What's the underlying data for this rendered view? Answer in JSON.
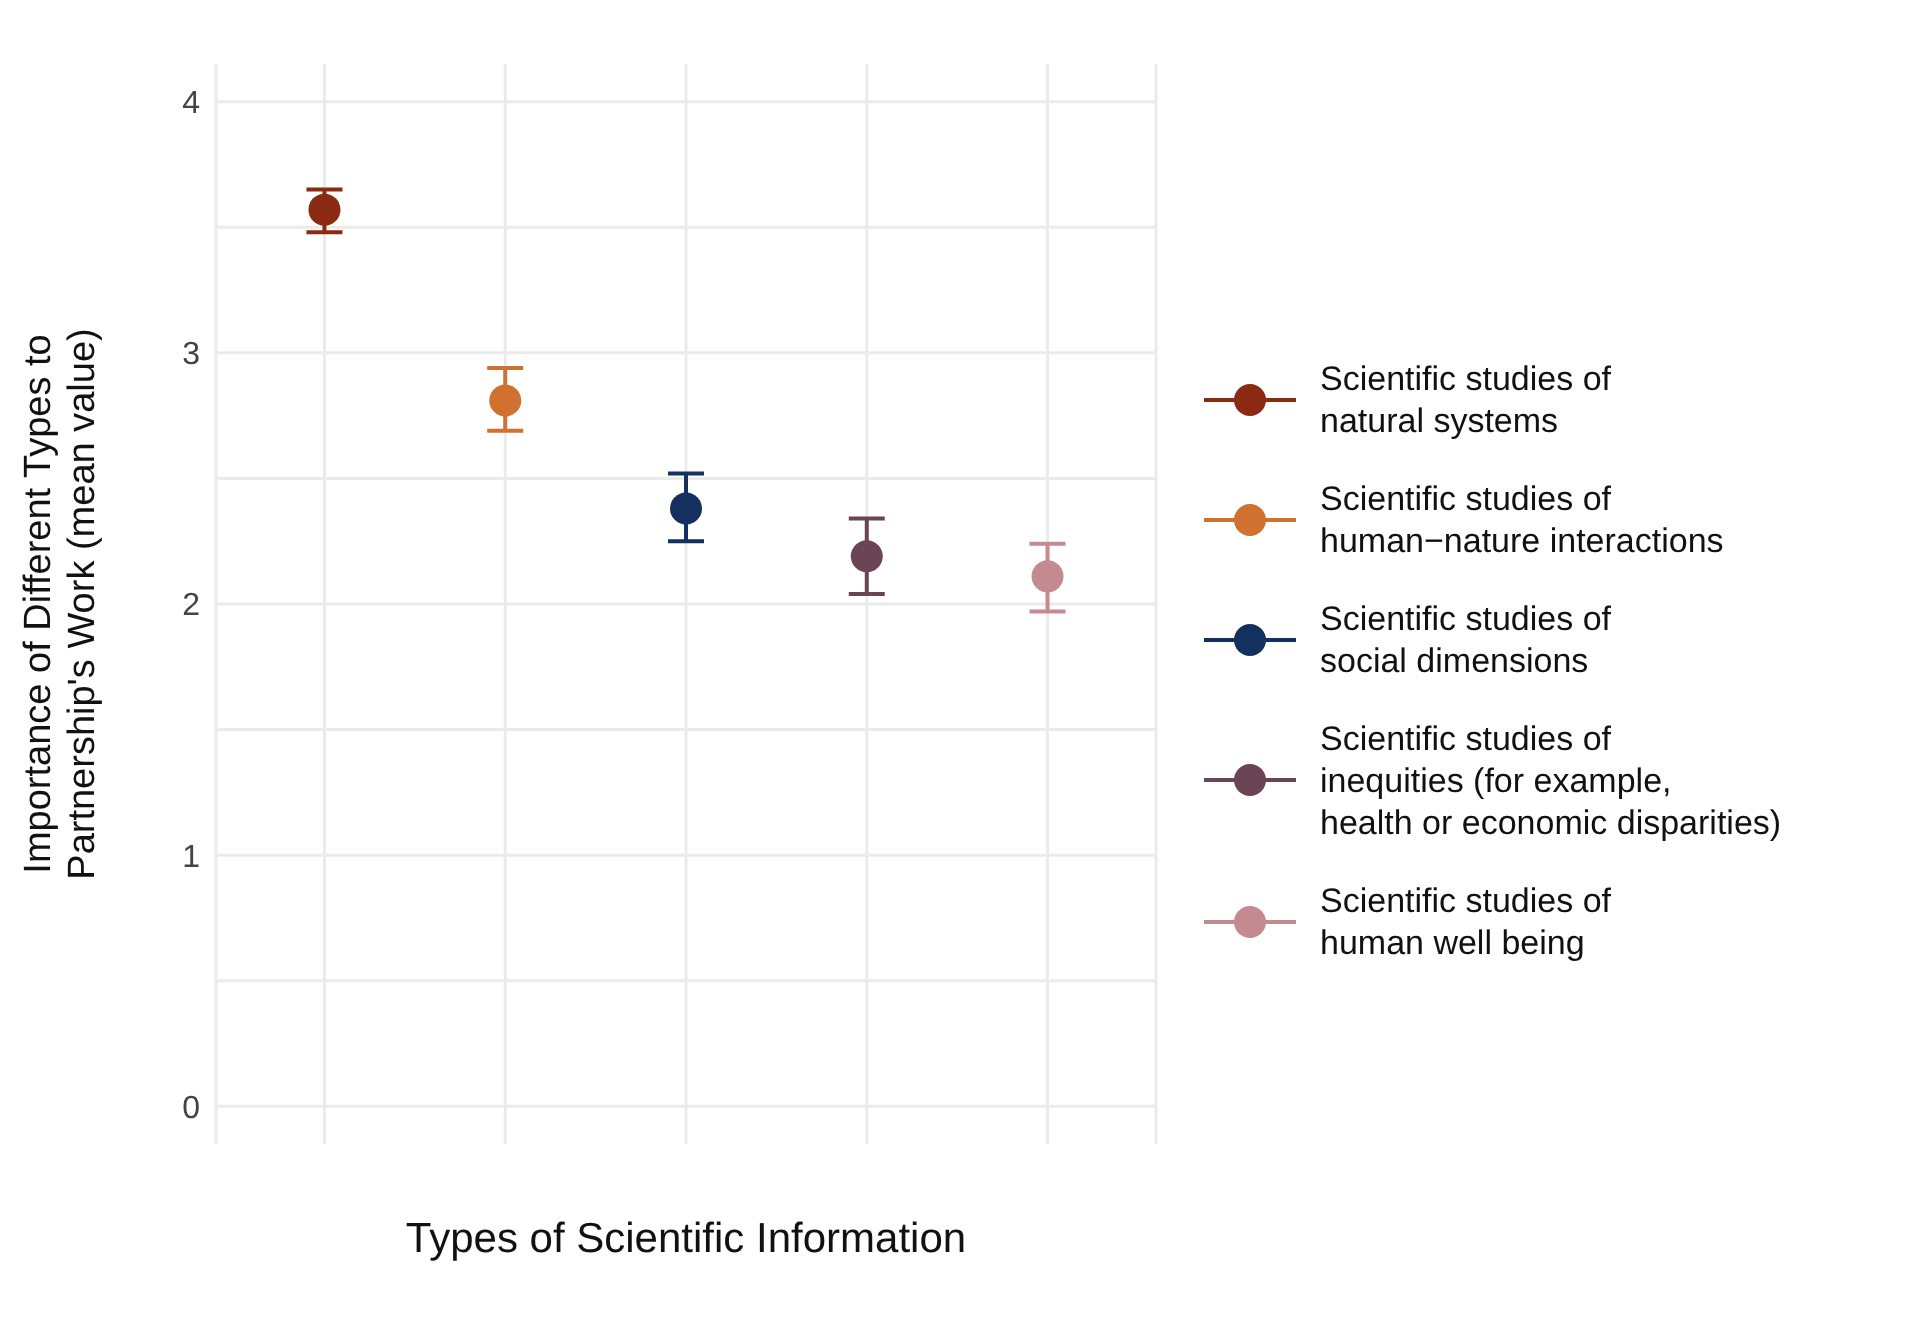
{
  "chart_data": {
    "type": "scatter",
    "xlabel": "Types of Scientific Information",
    "ylabel": "Importance of Different Types to\nPartnership's Work (mean value)",
    "categories": [
      null,
      null,
      null,
      null,
      null
    ],
    "series": [
      {
        "name": "Scientific studies of\nnatural systems",
        "color": "#8b2a12",
        "values": [
          3.57,
          null,
          null,
          null,
          null
        ],
        "errors": [
          [
            3.48,
            3.65
          ],
          null,
          null,
          null,
          null
        ]
      },
      {
        "name": "Scientific studies of\nhuman−nature interactions",
        "color": "#d0712f",
        "values": [
          null,
          2.81,
          null,
          null,
          null
        ],
        "errors": [
          null,
          [
            2.69,
            2.94
          ],
          null,
          null,
          null
        ]
      },
      {
        "name": "Scientific studies of\nsocial dimensions",
        "color": "#13305e",
        "values": [
          null,
          null,
          2.38,
          null,
          null
        ],
        "errors": [
          null,
          null,
          [
            2.25,
            2.52
          ],
          null,
          null
        ]
      },
      {
        "name": "Scientific studies of\ninequities (for example,\nhealth or economic disparities)",
        "color": "#6b4455",
        "values": [
          null,
          null,
          null,
          2.19,
          null
        ],
        "errors": [
          null,
          null,
          null,
          [
            2.04,
            2.34
          ],
          null
        ]
      },
      {
        "name": "Scientific studies of\nhuman well being",
        "color": "#c48a90",
        "values": [
          null,
          null,
          null,
          null,
          2.11
        ],
        "errors": [
          null,
          null,
          null,
          null,
          [
            1.97,
            2.24
          ]
        ]
      }
    ],
    "ylim": [
      -0.15,
      4.15
    ],
    "yticks": [
      0,
      1,
      2,
      3,
      4
    ],
    "grid": true,
    "legend": "right",
    "marker": "circle"
  }
}
